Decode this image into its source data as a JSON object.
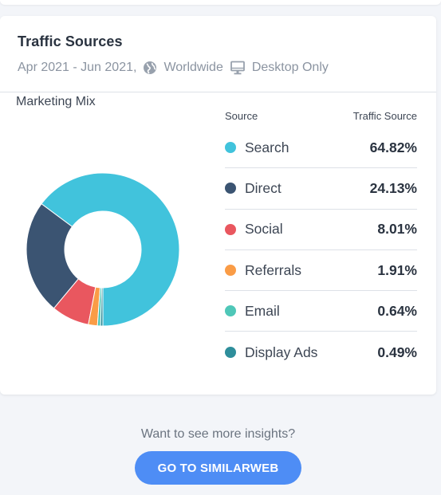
{
  "header": {
    "title": "Traffic Sources",
    "date_range": "Apr 2021 - Jun 2021,",
    "region": "Worldwide",
    "device": "Desktop Only",
    "region_icon": "globe-icon",
    "device_icon": "desktop-icon"
  },
  "chart_data": {
    "type": "pie",
    "title": "Marketing Mix",
    "categories": [
      "Search",
      "Direct",
      "Social",
      "Referrals",
      "Email",
      "Display Ads"
    ],
    "values": [
      64.82,
      24.13,
      8.01,
      1.91,
      0.64,
      0.49
    ],
    "colors": [
      "#41c3dc",
      "#3b5472",
      "#e9575f",
      "#fa9c46",
      "#4fc7b8",
      "#2e8e9b"
    ],
    "donut": true
  },
  "table": {
    "col_source": "Source",
    "col_traffic": "Traffic Source",
    "rows": [
      {
        "label": "Search",
        "value": "64.82%",
        "color": "#41c3dc"
      },
      {
        "label": "Direct",
        "value": "24.13%",
        "color": "#3b5472"
      },
      {
        "label": "Social",
        "value": "8.01%",
        "color": "#e9575f"
      },
      {
        "label": "Referrals",
        "value": "1.91%",
        "color": "#fa9c46"
      },
      {
        "label": "Email",
        "value": "0.64%",
        "color": "#4fc7b8"
      },
      {
        "label": "Display Ads",
        "value": "0.49%",
        "color": "#2e8e9b"
      }
    ]
  },
  "footer": {
    "prompt": "Want to see more insights?",
    "button": "GO TO SIMILARWEB",
    "button_color": "#4e8df5"
  }
}
